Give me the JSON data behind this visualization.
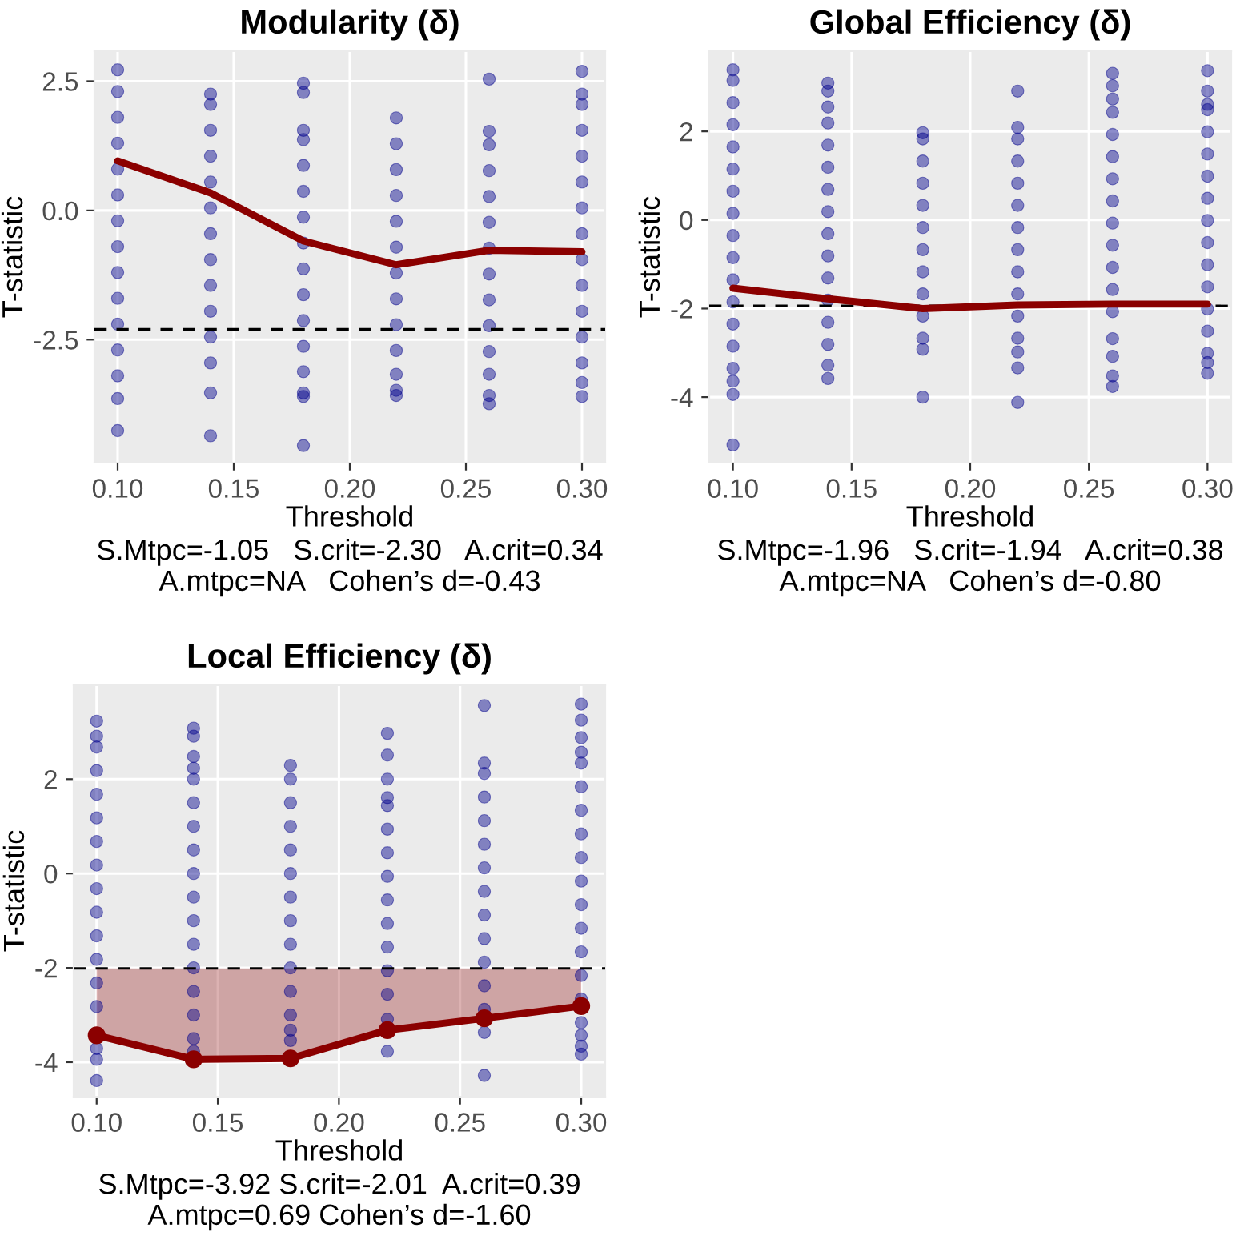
{
  "chart_data": [
    {
      "type": "scatter",
      "title": "Modularity (δ)",
      "xlabel": "Threshold",
      "ylabel": "T-statistic",
      "annotations": [
        "S.Mtpc=-1.05   S.crit=-2.30   A.crit=0.34",
        "A.mtpc=NA   Cohen’s d=-0.43"
      ],
      "xlim": [
        0.09,
        0.31
      ],
      "ylim": [
        -4.88,
        3.08
      ],
      "xticks": [
        {
          "value": 0.1,
          "label": "0.10"
        },
        {
          "value": 0.15,
          "label": "0.15"
        },
        {
          "value": 0.2,
          "label": "0.20"
        },
        {
          "value": 0.25,
          "label": "0.25"
        },
        {
          "value": 0.3,
          "label": "0.30"
        }
      ],
      "yticks": [
        {
          "value": -2.5,
          "label": "-2.5"
        },
        {
          "value": 0,
          "label": "0.0"
        },
        {
          "value": 2.5,
          "label": "2.5"
        }
      ],
      "grid": true,
      "series": [
        {
          "color": "#00008b",
          "x": [
            0.1,
            0.1,
            0.1,
            0.1,
            0.1,
            0.1,
            0.1,
            0.1,
            0.1,
            0.1,
            0.1,
            0.1,
            0.1,
            0.1,
            0.1,
            0.14,
            0.14,
            0.14,
            0.14,
            0.14,
            0.14,
            0.14,
            0.14,
            0.14,
            0.14,
            0.14,
            0.14,
            0.14,
            0.14,
            0.18,
            0.18,
            0.18,
            0.18,
            0.18,
            0.18,
            0.18,
            0.18,
            0.18,
            0.18,
            0.18,
            0.18,
            0.18,
            0.18,
            0.18,
            0.18,
            0.22,
            0.22,
            0.22,
            0.22,
            0.22,
            0.22,
            0.22,
            0.22,
            0.22,
            0.22,
            0.22,
            0.22,
            0.22,
            0.26,
            0.26,
            0.26,
            0.26,
            0.26,
            0.26,
            0.26,
            0.26,
            0.26,
            0.26,
            0.26,
            0.26,
            0.26,
            0.26,
            0.3,
            0.3,
            0.3,
            0.3,
            0.3,
            0.3,
            0.3,
            0.3,
            0.3,
            0.3,
            0.3,
            0.3,
            0.3,
            0.3,
            0.3
          ],
          "values": [
            2.72,
            2.3,
            1.8,
            1.3,
            0.8,
            0.3,
            -0.2,
            -0.7,
            -1.2,
            -1.7,
            -2.2,
            -2.7,
            -3.2,
            -3.64,
            -4.26,
            2.25,
            2.05,
            1.55,
            1.05,
            0.55,
            0.05,
            -0.45,
            -0.95,
            -1.45,
            -1.95,
            -2.45,
            -2.95,
            -3.53,
            -4.36,
            2.46,
            2.28,
            1.55,
            1.37,
            0.87,
            0.37,
            -0.13,
            -0.63,
            -1.13,
            -1.63,
            -2.13,
            -2.63,
            -3.12,
            -3.53,
            -3.6,
            -4.55,
            1.79,
            1.29,
            0.79,
            0.29,
            -0.21,
            -0.71,
            -1.21,
            -1.71,
            -2.21,
            -2.71,
            -3.17,
            -3.48,
            -3.58,
            2.54,
            1.53,
            1.27,
            0.77,
            0.27,
            -0.23,
            -0.73,
            -1.23,
            -1.73,
            -2.23,
            -2.73,
            -3.17,
            -3.58,
            -3.74,
            2.69,
            2.25,
            2.05,
            1.55,
            1.05,
            0.55,
            0.05,
            -0.45,
            -0.95,
            -1.45,
            -1.95,
            -2.45,
            -2.95,
            -3.33,
            -3.6
          ]
        },
        {
          "type": "line",
          "color": "#8b0000",
          "x": [
            0.1,
            0.14,
            0.18,
            0.22,
            0.26,
            0.3
          ],
          "values": [
            0.96,
            0.34,
            -0.59,
            -1.05,
            -0.77,
            -0.8
          ]
        }
      ],
      "ref_lines": [
        {
          "axis": "y",
          "value": -2.3,
          "line_style": "dashed",
          "color": "#000000"
        }
      ]
    },
    {
      "type": "scatter",
      "title": "Global Efficiency (δ)",
      "xlabel": "Threshold",
      "ylabel": "T-statistic",
      "annotations": [
        "S.Mtpc=-1.96   S.crit=-1.94   A.crit=0.38",
        "A.mtpc=NA   Cohen’s d=-0.80"
      ],
      "xlim": [
        0.09,
        0.31
      ],
      "ylim": [
        -5.48,
        3.81
      ],
      "xticks": [
        {
          "value": 0.1,
          "label": "0.10"
        },
        {
          "value": 0.15,
          "label": "0.15"
        },
        {
          "value": 0.2,
          "label": "0.20"
        },
        {
          "value": 0.25,
          "label": "0.25"
        },
        {
          "value": 0.3,
          "label": "0.30"
        }
      ],
      "yticks": [
        -4,
        -2,
        0,
        2
      ],
      "grid": true,
      "series": [
        {
          "color": "#00008b",
          "x": [
            0.1,
            0.1,
            0.1,
            0.1,
            0.1,
            0.1,
            0.1,
            0.1,
            0.1,
            0.1,
            0.1,
            0.1,
            0.1,
            0.1,
            0.1,
            0.1,
            0.1,
            0.1,
            0.14,
            0.14,
            0.14,
            0.14,
            0.14,
            0.14,
            0.14,
            0.14,
            0.14,
            0.14,
            0.14,
            0.14,
            0.14,
            0.14,
            0.14,
            0.14,
            0.18,
            0.18,
            0.18,
            0.18,
            0.18,
            0.18,
            0.18,
            0.18,
            0.18,
            0.18,
            0.18,
            0.18,
            0.18,
            0.22,
            0.22,
            0.22,
            0.22,
            0.22,
            0.22,
            0.22,
            0.22,
            0.22,
            0.22,
            0.22,
            0.22,
            0.22,
            0.22,
            0.22,
            0.26,
            0.26,
            0.26,
            0.26,
            0.26,
            0.26,
            0.26,
            0.26,
            0.26,
            0.26,
            0.26,
            0.26,
            0.26,
            0.26,
            0.26,
            0.26,
            0.26,
            0.3,
            0.3,
            0.3,
            0.3,
            0.3,
            0.3,
            0.3,
            0.3,
            0.3,
            0.3,
            0.3,
            0.3,
            0.3,
            0.3,
            0.3,
            0.3,
            0.3
          ],
          "values": [
            3.39,
            3.15,
            2.65,
            2.15,
            1.65,
            1.15,
            0.65,
            0.15,
            -0.35,
            -0.85,
            -1.35,
            -1.85,
            -2.35,
            -2.85,
            -3.35,
            -3.64,
            -3.94,
            -5.08,
            3.09,
            2.91,
            2.55,
            2.19,
            1.69,
            1.19,
            0.69,
            0.19,
            -0.31,
            -0.81,
            -1.31,
            -1.81,
            -2.31,
            -2.81,
            -3.28,
            -3.58,
            1.97,
            1.83,
            1.33,
            0.83,
            0.33,
            -0.17,
            -0.67,
            -1.17,
            -1.67,
            -2.17,
            -2.67,
            -2.92,
            -4.0,
            2.91,
            2.09,
            1.83,
            1.33,
            0.83,
            0.33,
            -0.17,
            -0.67,
            -1.17,
            -1.67,
            -2.17,
            -2.67,
            -2.98,
            -3.34,
            -4.12,
            3.31,
            3.03,
            2.73,
            2.43,
            1.93,
            1.43,
            0.93,
            0.43,
            -0.07,
            -0.57,
            -1.07,
            -1.57,
            -2.07,
            -2.68,
            -3.08,
            -3.52,
            -3.76,
            3.37,
            2.91,
            2.61,
            2.49,
            1.99,
            1.49,
            0.99,
            0.49,
            -0.01,
            -0.51,
            -1.01,
            -1.51,
            -2.01,
            -2.51,
            -3.01,
            -3.22,
            -3.46
          ]
        },
        {
          "type": "line",
          "color": "#8b0000",
          "x": [
            0.1,
            0.14,
            0.18,
            0.22,
            0.26,
            0.3
          ],
          "values": [
            -1.54,
            -1.78,
            -2.0,
            -1.92,
            -1.9,
            -1.9
          ]
        }
      ],
      "ref_lines": [
        {
          "axis": "y",
          "value": -1.94,
          "line_style": "dashed",
          "color": "#000000"
        }
      ]
    },
    {
      "type": "scatter",
      "title": "Local Efficiency (δ)",
      "xlabel": "Threshold",
      "ylabel": "T-statistic",
      "annotations": [
        "S.Mtpc=-3.92 S.crit=-2.01  A.crit=0.39",
        "A.mtpc=0.69 Cohen’s d=-1.60"
      ],
      "xlim": [
        0.0905,
        0.3099
      ],
      "ylim": [
        -4.73,
        3.99
      ],
      "xticks": [
        {
          "value": 0.1,
          "label": "0.10"
        },
        {
          "value": 0.15,
          "label": "0.15"
        },
        {
          "value": 0.2,
          "label": "0.20"
        },
        {
          "value": 0.25,
          "label": "0.25"
        },
        {
          "value": 0.3,
          "label": "0.30"
        }
      ],
      "yticks": [
        -4,
        -2,
        0,
        2
      ],
      "grid": true,
      "series": [
        {
          "color": "#00008b",
          "x": [
            0.1,
            0.1,
            0.1,
            0.1,
            0.1,
            0.1,
            0.1,
            0.1,
            0.1,
            0.1,
            0.1,
            0.1,
            0.1,
            0.1,
            0.1,
            0.1,
            0.1,
            0.14,
            0.14,
            0.14,
            0.14,
            0.14,
            0.14,
            0.14,
            0.14,
            0.14,
            0.14,
            0.14,
            0.14,
            0.14,
            0.14,
            0.14,
            0.14,
            0.14,
            0.18,
            0.18,
            0.18,
            0.18,
            0.18,
            0.18,
            0.18,
            0.18,
            0.18,
            0.18,
            0.18,
            0.18,
            0.18,
            0.18,
            0.22,
            0.22,
            0.22,
            0.22,
            0.22,
            0.22,
            0.22,
            0.22,
            0.22,
            0.22,
            0.22,
            0.22,
            0.22,
            0.22,
            0.22,
            0.26,
            0.26,
            0.26,
            0.26,
            0.26,
            0.26,
            0.26,
            0.26,
            0.26,
            0.26,
            0.26,
            0.26,
            0.26,
            0.26,
            0.26,
            0.3,
            0.3,
            0.3,
            0.3,
            0.3,
            0.3,
            0.3,
            0.3,
            0.3,
            0.3,
            0.3,
            0.3,
            0.3,
            0.3,
            0.3,
            0.3,
            0.3,
            0.3,
            0.3
          ],
          "values": [
            3.23,
            2.91,
            2.68,
            2.18,
            1.68,
            1.18,
            0.68,
            0.18,
            -0.32,
            -0.82,
            -1.32,
            -1.82,
            -2.32,
            -2.82,
            -3.71,
            -3.94,
            -4.39,
            3.08,
            2.91,
            2.48,
            2.23,
            2.0,
            1.5,
            1.0,
            0.5,
            0.0,
            -0.5,
            -1.0,
            -1.5,
            -2.0,
            -2.5,
            -3.0,
            -3.5,
            -3.77,
            2.29,
            2.0,
            1.5,
            1.0,
            0.5,
            0.0,
            -0.5,
            -1.0,
            -1.5,
            -2.0,
            -2.5,
            -3.0,
            -3.32,
            -3.54,
            2.97,
            2.51,
            2.0,
            1.61,
            1.44,
            0.94,
            0.44,
            -0.06,
            -0.56,
            -1.06,
            -1.56,
            -2.06,
            -2.56,
            -3.09,
            -3.77,
            3.56,
            2.34,
            2.12,
            1.62,
            1.12,
            0.62,
            0.12,
            -0.38,
            -0.88,
            -1.38,
            -1.88,
            -2.38,
            -2.88,
            -3.37,
            -4.28,
            3.59,
            3.25,
            2.88,
            2.57,
            2.34,
            1.84,
            1.34,
            0.84,
            0.34,
            -0.16,
            -0.66,
            -1.16,
            -1.66,
            -2.16,
            -2.66,
            -3.16,
            -3.43,
            -3.66,
            -3.83
          ]
        },
        {
          "type": "line",
          "color": "#8b0000",
          "marker": "circle",
          "x": [
            0.1,
            0.14,
            0.18,
            0.22,
            0.26,
            0.3
          ],
          "values": [
            -3.43,
            -3.94,
            -3.92,
            -3.32,
            -3.07,
            -2.81
          ],
          "lower": [
            -3.43,
            -3.94,
            -3.92,
            -3.32,
            -3.07,
            -2.81
          ],
          "upper": [
            -2.01,
            -2.01,
            -2.01,
            -2.01,
            -2.01,
            -2.01
          ]
        }
      ],
      "ref_lines": [
        {
          "axis": "y",
          "value": -2.01,
          "line_style": "dashed",
          "color": "#000000"
        }
      ]
    }
  ]
}
